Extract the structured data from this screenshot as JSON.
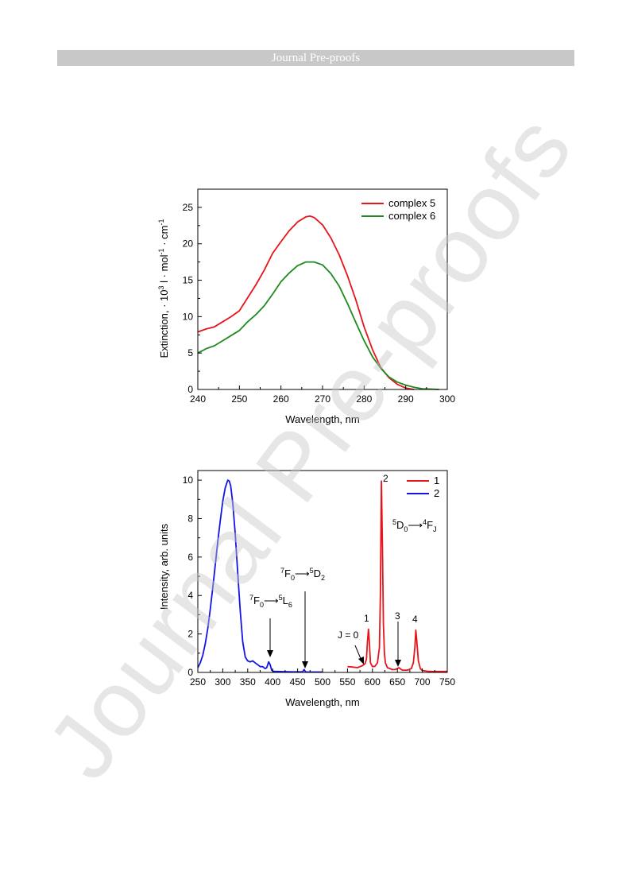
{
  "header": {
    "title": "Journal Pre-proofs"
  },
  "watermark": "Journal Pre-proofs",
  "chart_data": [
    {
      "type": "line",
      "xlabel": "Wavelength, nm",
      "ylabel": "Extinction, · 10³ l · mol⁻¹ · cm⁻¹",
      "xlim": [
        240,
        300
      ],
      "ylim": [
        0,
        27.5
      ],
      "xticks": [
        240,
        250,
        260,
        270,
        280,
        290,
        300
      ],
      "yticks": [
        0,
        5,
        10,
        15,
        20,
        25
      ],
      "legend_position": "top-right",
      "series": [
        {
          "name": "complex 5",
          "color": "#e8141c",
          "x": [
            240,
            242,
            244,
            246,
            248,
            250,
            252,
            254,
            256,
            258,
            260,
            262,
            264,
            266,
            267,
            268,
            270,
            272,
            274,
            276,
            278,
            280,
            282,
            284,
            286,
            288,
            290,
            292
          ],
          "y": [
            7.9,
            8.3,
            8.6,
            9.3,
            10.0,
            10.8,
            12.6,
            14.4,
            16.4,
            18.7,
            20.3,
            21.8,
            23.0,
            23.7,
            23.8,
            23.6,
            22.6,
            20.8,
            18.5,
            15.6,
            12.3,
            8.6,
            5.5,
            3.0,
            1.6,
            0.7,
            0.2,
            0.0
          ]
        },
        {
          "name": "complex 6",
          "color": "#1f8a1f",
          "x": [
            240,
            242,
            244,
            246,
            248,
            250,
            252,
            254,
            256,
            258,
            260,
            262,
            264,
            266,
            268,
            270,
            272,
            274,
            276,
            278,
            280,
            282,
            284,
            286,
            288,
            290,
            292,
            294,
            296,
            298
          ],
          "y": [
            5.0,
            5.6,
            6.0,
            6.7,
            7.4,
            8.1,
            9.3,
            10.3,
            11.5,
            13.1,
            14.8,
            16.0,
            17.0,
            17.5,
            17.5,
            17.1,
            15.9,
            14.2,
            11.8,
            9.2,
            6.7,
            4.5,
            2.9,
            1.7,
            1.0,
            0.6,
            0.3,
            0.1,
            0.05,
            0.0
          ]
        }
      ]
    },
    {
      "type": "line",
      "xlabel": "Wavelength, nm",
      "ylabel": "Intensity, arb. units",
      "xlim": [
        250,
        750
      ],
      "ylim": [
        0,
        10.5
      ],
      "xticks": [
        250,
        300,
        350,
        400,
        450,
        500,
        550,
        600,
        650,
        700,
        750
      ],
      "yticks": [
        0,
        2,
        4,
        6,
        8,
        10
      ],
      "legend_position": "top-right",
      "series": [
        {
          "name": "1",
          "color": "#e8141c",
          "x": [
            550,
            560,
            570,
            575,
            580,
            585,
            588,
            590,
            592,
            594,
            596,
            600,
            605,
            610,
            614,
            616,
            618,
            620,
            622,
            624,
            626,
            630,
            640,
            645,
            650,
            653,
            656,
            660,
            670,
            678,
            682,
            685,
            687,
            689,
            692,
            696,
            700,
            710,
            720,
            730,
            740,
            750
          ],
          "y": [
            0.3,
            0.28,
            0.25,
            0.3,
            0.35,
            0.45,
            0.7,
            1.6,
            2.25,
            1.5,
            0.5,
            0.3,
            0.32,
            0.5,
            1.3,
            4.0,
            9.95,
            6.5,
            2.5,
            1.0,
            0.5,
            0.25,
            0.15,
            0.15,
            0.2,
            0.25,
            0.18,
            0.12,
            0.12,
            0.2,
            0.5,
            1.3,
            2.2,
            1.6,
            0.6,
            0.2,
            0.1,
            0.06,
            0.05,
            0.05,
            0.05,
            0.05
          ]
        },
        {
          "name": "2",
          "color": "#1414e6",
          "x": [
            250,
            255,
            260,
            265,
            270,
            275,
            280,
            285,
            290,
            295,
            300,
            305,
            310,
            313,
            316,
            320,
            325,
            330,
            335,
            340,
            345,
            350,
            355,
            360,
            365,
            370,
            375,
            380,
            385,
            388,
            392,
            395,
            398,
            402,
            410,
            420,
            440,
            460,
            463,
            466,
            469,
            480,
            490,
            500
          ],
          "y": [
            0.25,
            0.5,
            0.9,
            1.5,
            2.3,
            3.3,
            4.4,
            5.6,
            6.8,
            7.9,
            8.9,
            9.6,
            10.0,
            9.95,
            9.7,
            8.8,
            7.2,
            5.2,
            3.2,
            1.6,
            0.8,
            0.6,
            0.55,
            0.6,
            0.5,
            0.4,
            0.3,
            0.3,
            0.2,
            0.25,
            0.55,
            0.4,
            0.12,
            0.05,
            0.05,
            0.04,
            0.03,
            0.03,
            0.15,
            0.03,
            0.02,
            0.02,
            0.02,
            0.02
          ]
        }
      ],
      "annotations": [
        {
          "label": "J = 0",
          "x": 580,
          "y": 0.35
        },
        {
          "label": "1",
          "x": 592,
          "y": 2.25
        },
        {
          "label": "2",
          "x": 618,
          "y": 9.95
        },
        {
          "label": "3",
          "x": 653,
          "y": 0.25
        },
        {
          "label": "4",
          "x": 687,
          "y": 2.2
        },
        {
          "label": "⁷F₀→⁵L₆",
          "x": 392,
          "y": 0.55
        },
        {
          "label": "⁷F₀→⁵D₂",
          "x": 464,
          "y": 0.15
        },
        {
          "label": "⁵D₀→⁴F_J",
          "x": 670,
          "y": 7.5
        }
      ]
    }
  ]
}
